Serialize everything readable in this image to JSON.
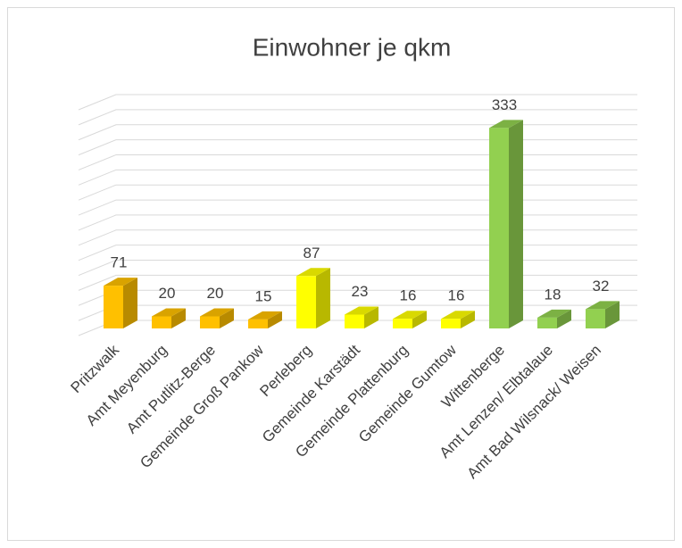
{
  "chart_data": {
    "type": "bar3d",
    "title": "Einwohner je qkm",
    "categories": [
      "Pritzwalk",
      "Amt Meyenburg",
      "Amt Putlitz-Berge",
      "Gemeinde Groß Pankow",
      "Perleberg",
      "Gemeinde Karstädt",
      "Gemeinde Plattenburg",
      "Gemeinde Gumtow",
      "Wittenberge",
      "Amt Lenzen/ Elbtalaue",
      "Amt Bad Wilsnack/ Weisen"
    ],
    "values": [
      71,
      20,
      20,
      15,
      87,
      23,
      16,
      16,
      333,
      18,
      32
    ],
    "colors": [
      "#ffc000",
      "#ffc000",
      "#ffc000",
      "#ffc000",
      "#ffff00",
      "#ffff00",
      "#ffff00",
      "#ffff00",
      "#92d050",
      "#92d050",
      "#92d050"
    ],
    "ylim": [
      0,
      375
    ],
    "yticks": [
      0,
      25,
      50,
      75,
      100,
      125,
      150,
      175,
      200,
      225,
      250,
      275,
      300,
      325,
      350,
      375
    ],
    "grid": true
  }
}
